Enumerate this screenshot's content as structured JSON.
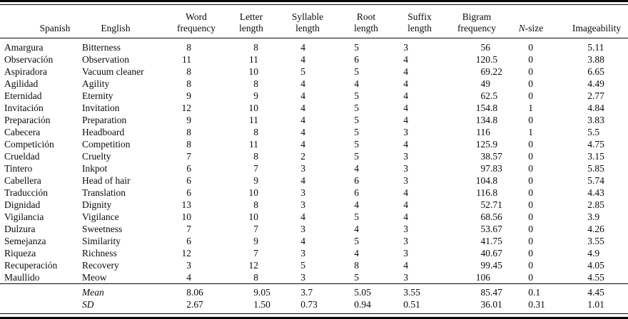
{
  "table": {
    "headers": {
      "spanish": {
        "line1": "",
        "line2": "Spanish"
      },
      "english": {
        "line1": "",
        "line2": "English"
      },
      "word_frequency": {
        "line1": "Word",
        "line2": "frequency"
      },
      "letter_length": {
        "line1": "Letter",
        "line2": "length"
      },
      "syllable_length": {
        "line1": "Syllable",
        "line2": "length"
      },
      "root_length": {
        "line1": "Root",
        "line2": "length"
      },
      "suffix_length": {
        "line1": "Suffix",
        "line2": "length"
      },
      "bigram_frequency": {
        "line1": "Bigram",
        "line2": "frequency"
      },
      "n_size": {
        "line1": "",
        "line2_italic": "N",
        "line2_rest": "-size"
      },
      "imageability": {
        "line1": "",
        "line2": "Imageability"
      }
    },
    "rows": [
      {
        "spanish": "Amargura",
        "english": "Bitterness",
        "word_frequency": "8",
        "letter_length": "8",
        "syllable_length": "4",
        "root_length": "5",
        "suffix_length": "3",
        "bigram_frequency": "56",
        "n_size": "0",
        "imageability": "5.11"
      },
      {
        "spanish": "Observación",
        "english": "Observation",
        "word_frequency": "11",
        "letter_length": "11",
        "syllable_length": "4",
        "root_length": "6",
        "suffix_length": "4",
        "bigram_frequency": "120.5",
        "n_size": "0",
        "imageability": "3.88"
      },
      {
        "spanish": "Aspiradora",
        "english": "Vacuum cleaner",
        "word_frequency": "8",
        "letter_length": "10",
        "syllable_length": "5",
        "root_length": "5",
        "suffix_length": "4",
        "bigram_frequency": "69.22",
        "n_size": "0",
        "imageability": "6.65"
      },
      {
        "spanish": "Agilidad",
        "english": "Agility",
        "word_frequency": "8",
        "letter_length": "8",
        "syllable_length": "4",
        "root_length": "4",
        "suffix_length": "4",
        "bigram_frequency": "49",
        "n_size": "0",
        "imageability": "4.49"
      },
      {
        "spanish": "Eternidad",
        "english": "Eternity",
        "word_frequency": "9",
        "letter_length": "9",
        "syllable_length": "4",
        "root_length": "5",
        "suffix_length": "4",
        "bigram_frequency": "62.5",
        "n_size": "0",
        "imageability": "2.77"
      },
      {
        "spanish": "Invitación",
        "english": "Invitation",
        "word_frequency": "12",
        "letter_length": "10",
        "syllable_length": "4",
        "root_length": "5",
        "suffix_length": "4",
        "bigram_frequency": "154.8",
        "n_size": "1",
        "imageability": "4.84"
      },
      {
        "spanish": "Preparación",
        "english": "Preparation",
        "word_frequency": "9",
        "letter_length": "11",
        "syllable_length": "4",
        "root_length": "5",
        "suffix_length": "4",
        "bigram_frequency": "134.8",
        "n_size": "0",
        "imageability": "3.83"
      },
      {
        "spanish": "Cabecera",
        "english": "Headboard",
        "word_frequency": "8",
        "letter_length": "8",
        "syllable_length": "4",
        "root_length": "5",
        "suffix_length": "3",
        "bigram_frequency": "116",
        "n_size": "1",
        "imageability": "5.5"
      },
      {
        "spanish": "Competición",
        "english": "Competition",
        "word_frequency": "8",
        "letter_length": "11",
        "syllable_length": "4",
        "root_length": "5",
        "suffix_length": "4",
        "bigram_frequency": "125.9",
        "n_size": "0",
        "imageability": "4.75"
      },
      {
        "spanish": "Crueldad",
        "english": "Cruelty",
        "word_frequency": "7",
        "letter_length": "8",
        "syllable_length": "2",
        "root_length": "5",
        "suffix_length": "3",
        "bigram_frequency": "38.57",
        "n_size": "0",
        "imageability": "3.15"
      },
      {
        "spanish": "Tintero",
        "english": "Inkpot",
        "word_frequency": "6",
        "letter_length": "7",
        "syllable_length": "3",
        "root_length": "4",
        "suffix_length": "3",
        "bigram_frequency": "97.83",
        "n_size": "0",
        "imageability": "5.85"
      },
      {
        "spanish": "Cabellera",
        "english": "Head of hair",
        "word_frequency": "6",
        "letter_length": "9",
        "syllable_length": "4",
        "root_length": "6",
        "suffix_length": "3",
        "bigram_frequency": "104.8",
        "n_size": "0",
        "imageability": "5.74"
      },
      {
        "spanish": "Traducción",
        "english": "Translation",
        "word_frequency": "6",
        "letter_length": "10",
        "syllable_length": "3",
        "root_length": "6",
        "suffix_length": "4",
        "bigram_frequency": "116.8",
        "n_size": "0",
        "imageability": "4.43"
      },
      {
        "spanish": "Dignidad",
        "english": "Dignity",
        "word_frequency": "13",
        "letter_length": "8",
        "syllable_length": "3",
        "root_length": "4",
        "suffix_length": "4",
        "bigram_frequency": "52.71",
        "n_size": "0",
        "imageability": "2.85"
      },
      {
        "spanish": "Vigilancia",
        "english": "Vigilance",
        "word_frequency": "10",
        "letter_length": "10",
        "syllable_length": "4",
        "root_length": "5",
        "suffix_length": "4",
        "bigram_frequency": "68.56",
        "n_size": "0",
        "imageability": "3.9"
      },
      {
        "spanish": "Dulzura",
        "english": "Sweetness",
        "word_frequency": "7",
        "letter_length": "7",
        "syllable_length": "3",
        "root_length": "4",
        "suffix_length": "3",
        "bigram_frequency": "53.67",
        "n_size": "0",
        "imageability": "4.26"
      },
      {
        "spanish": "Semejanza",
        "english": "Similarity",
        "word_frequency": "6",
        "letter_length": "9",
        "syllable_length": "4",
        "root_length": "5",
        "suffix_length": "3",
        "bigram_frequency": "41.75",
        "n_size": "0",
        "imageability": "3.55"
      },
      {
        "spanish": "Riqueza",
        "english": "Richness",
        "word_frequency": "12",
        "letter_length": "7",
        "syllable_length": "3",
        "root_length": "4",
        "suffix_length": "3",
        "bigram_frequency": "40.67",
        "n_size": "0",
        "imageability": "4.9"
      },
      {
        "spanish": "Recuperación",
        "english": "Recovery",
        "word_frequency": "3",
        "letter_length": "12",
        "syllable_length": "5",
        "root_length": "8",
        "suffix_length": "4",
        "bigram_frequency": "99.45",
        "n_size": "0",
        "imageability": "4.05"
      },
      {
        "spanish": "Maullido",
        "english": "Meow",
        "word_frequency": "4",
        "letter_length": "8",
        "syllable_length": "3",
        "root_length": "5",
        "suffix_length": "3",
        "bigram_frequency": "106",
        "n_size": "0",
        "imageability": "4.55"
      }
    ],
    "summary_rows": [
      {
        "label": "Mean",
        "word_frequency": "8.06",
        "letter_length": "9.05",
        "syllable_length": "3.7",
        "root_length": "5.05",
        "suffix_length": "3.55",
        "bigram_frequency": "85.47",
        "n_size": "0.1",
        "imageability": "4.45"
      },
      {
        "label": "SD",
        "word_frequency": "2.67",
        "letter_length": "1.50",
        "syllable_length": "0.73",
        "root_length": "0.94",
        "suffix_length": "0.51",
        "bigram_frequency": "36.01",
        "n_size": "0.31",
        "imageability": "1.01"
      }
    ]
  }
}
